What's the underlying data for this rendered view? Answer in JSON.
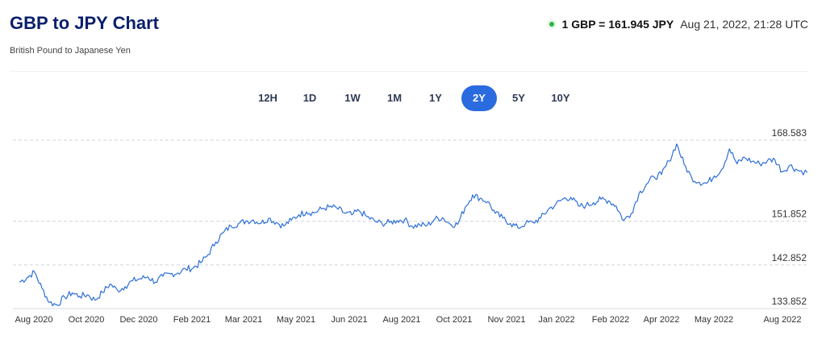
{
  "header": {
    "title": "GBP to JPY Chart",
    "subtitle": "British Pound to Japanese Yen"
  },
  "rate": {
    "text": "1 GBP = 161.945 JPY",
    "timestamp": "Aug 21, 2022, 21:28 UTC",
    "status_color": "#2fb344"
  },
  "tabs": [
    {
      "label": "12H",
      "active": false
    },
    {
      "label": "1D",
      "active": false
    },
    {
      "label": "1W",
      "active": false
    },
    {
      "label": "1M",
      "active": false
    },
    {
      "label": "1Y",
      "active": false
    },
    {
      "label": "2Y",
      "active": true
    },
    {
      "label": "5Y",
      "active": false
    },
    {
      "label": "10Y",
      "active": false
    }
  ],
  "colors": {
    "accent": "#2a6be0",
    "line": "#2d6fd8",
    "title": "#0a1f6b"
  },
  "chart_data": {
    "type": "line",
    "title": "",
    "xlabel": "",
    "ylabel": "",
    "ylim": [
      133.852,
      168.583
    ],
    "y_ticks": [
      "168.583",
      "151.852",
      "142.852",
      "133.852"
    ],
    "y_tick_values": [
      168.583,
      151.852,
      142.852,
      133.852
    ],
    "x_ticks": [
      "Aug 2020",
      "Oct 2020",
      "Dec 2020",
      "Feb 2021",
      "Mar 2021",
      "May 2021",
      "Jun 2021",
      "Aug 2021",
      "Oct 2021",
      "Nov 2021",
      "Jan 2022",
      "Feb 2022",
      "Apr 2022",
      "May 2022",
      "Aug 2022"
    ],
    "grid": "dashed horizontal",
    "series": [
      {
        "name": "",
        "x": [
          "2020-08-21",
          "2020-08-28",
          "2020-09-04",
          "2020-09-11",
          "2020-09-18",
          "2020-09-25",
          "2020-10-02",
          "2020-10-09",
          "2020-10-16",
          "2020-10-23",
          "2020-10-30",
          "2020-11-06",
          "2020-11-13",
          "2020-11-20",
          "2020-11-27",
          "2020-12-04",
          "2020-12-11",
          "2020-12-18",
          "2020-12-25",
          "2021-01-01",
          "2021-01-08",
          "2021-01-15",
          "2021-01-22",
          "2021-01-29",
          "2021-02-05",
          "2021-02-12",
          "2021-02-19",
          "2021-02-26",
          "2021-03-05",
          "2021-03-12",
          "2021-03-19",
          "2021-03-26",
          "2021-04-02",
          "2021-04-09",
          "2021-04-16",
          "2021-04-23",
          "2021-04-30",
          "2021-05-07",
          "2021-05-14",
          "2021-05-21",
          "2021-05-28",
          "2021-06-04",
          "2021-06-11",
          "2021-06-18",
          "2021-06-25",
          "2021-07-02",
          "2021-07-09",
          "2021-07-16",
          "2021-07-23",
          "2021-07-30",
          "2021-08-06",
          "2021-08-13",
          "2021-08-20",
          "2021-08-27",
          "2021-09-03",
          "2021-09-10",
          "2021-09-17",
          "2021-09-24",
          "2021-10-01",
          "2021-10-08",
          "2021-10-15",
          "2021-10-22",
          "2021-10-29",
          "2021-11-05",
          "2021-11-12",
          "2021-11-19",
          "2021-11-26",
          "2021-12-03",
          "2021-12-10",
          "2021-12-17",
          "2021-12-24",
          "2021-12-31",
          "2022-01-07",
          "2022-01-14",
          "2022-01-21",
          "2022-01-28",
          "2022-02-04",
          "2022-02-11",
          "2022-02-18",
          "2022-02-25",
          "2022-03-04",
          "2022-03-11",
          "2022-03-18",
          "2022-03-25",
          "2022-04-01",
          "2022-04-08",
          "2022-04-15",
          "2022-04-22",
          "2022-04-29",
          "2022-05-06",
          "2022-05-13",
          "2022-05-20",
          "2022-05-27",
          "2022-06-03",
          "2022-06-10",
          "2022-06-17",
          "2022-06-24",
          "2022-07-01",
          "2022-07-08",
          "2022-07-15",
          "2022-07-22",
          "2022-07-29",
          "2022-08-05",
          "2022-08-12",
          "2022-08-21"
        ],
        "values": [
          139.3,
          140.2,
          141.4,
          138.0,
          135.1,
          134.6,
          136.2,
          137.1,
          136.4,
          136.7,
          135.6,
          137.2,
          138.9,
          137.6,
          138.4,
          139.6,
          140.0,
          140.4,
          139.3,
          140.5,
          141.0,
          141.2,
          142.0,
          142.2,
          143.3,
          145.0,
          147.6,
          149.5,
          150.9,
          151.4,
          151.9,
          152.1,
          151.5,
          152.5,
          151.6,
          150.9,
          152.1,
          153.2,
          153.8,
          153.6,
          154.4,
          154.8,
          154.6,
          153.6,
          153.2,
          154.0,
          152.8,
          151.9,
          151.4,
          151.6,
          152.0,
          152.2,
          150.8,
          151.1,
          151.0,
          152.3,
          152.6,
          151.3,
          151.2,
          154.7,
          157.3,
          156.6,
          155.9,
          153.5,
          152.5,
          151.4,
          150.5,
          151.4,
          151.6,
          152.5,
          154.3,
          155.3,
          156.5,
          156.8,
          155.0,
          155.1,
          155.7,
          156.4,
          156.1,
          155.0,
          152.0,
          153.5,
          157.5,
          159.5,
          161.0,
          161.5,
          164.3,
          167.8,
          163.6,
          160.8,
          159.9,
          159.7,
          161.2,
          162.6,
          166.8,
          163.7,
          165.0,
          164.2,
          163.7,
          164.3,
          164.6,
          162.1,
          163.4,
          162.4,
          161.9
        ]
      }
    ]
  }
}
